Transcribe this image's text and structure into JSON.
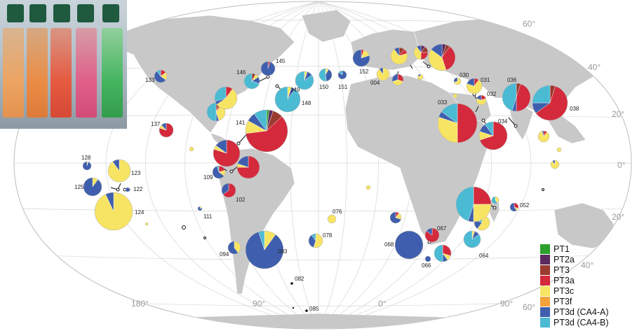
{
  "graticule_labels": {
    "lat_60_n": "60°",
    "lat_40_n": "40°",
    "lat_20_n": "20°",
    "lat_0": "0°",
    "lat_20_s": "20°",
    "lat_40_s": "40°",
    "lat_60_s": "60°",
    "lon_180": "180°",
    "lon_90w": "90°",
    "lon_0": "0°",
    "lon_90e": "90°"
  },
  "legend": [
    {
      "label": "PT1",
      "color": "#2ca02c"
    },
    {
      "label": "PT2a",
      "color": "#5b2a5e"
    },
    {
      "label": "PT3",
      "color": "#9b3a2e"
    },
    {
      "label": "PT3a",
      "color": "#d42a3c"
    },
    {
      "label": "PT3c",
      "color": "#f7e463"
    },
    {
      "label": "PT3f",
      "color": "#f2a23a"
    },
    {
      "label": "PT3d (CA4-A)",
      "color": "#3f5fae"
    },
    {
      "label": "PT3d (CA4-B)",
      "color": "#4bbad3"
    }
  ],
  "stations": [
    {
      "id": "133",
      "shares": [
        0,
        0,
        0,
        0.15,
        0.2,
        0,
        0.55,
        0.1
      ]
    },
    {
      "id": "146",
      "shares": [
        0,
        0,
        0.08,
        0,
        0.08,
        0,
        0.14,
        0.7
      ]
    },
    {
      "id": "145",
      "shares": [
        0,
        0,
        0,
        0.05,
        0,
        0,
        0.95,
        0
      ]
    },
    {
      "id": "149",
      "shares": [
        0,
        0,
        0,
        0,
        0.05,
        0,
        0.1,
        0.85
      ]
    },
    {
      "id": "150",
      "shares": [
        0,
        0,
        0,
        0,
        0.08,
        0,
        0.4,
        0.52
      ]
    },
    {
      "id": "151",
      "shares": [
        0,
        0,
        0,
        0,
        0,
        0,
        0.85,
        0.15
      ]
    },
    {
      "id": "152",
      "shares": [
        0,
        0,
        0,
        0.05,
        0.15,
        0,
        0.8,
        0
      ]
    },
    {
      "id": "148",
      "shares": [
        0,
        0,
        0,
        0,
        0.05,
        0,
        0.05,
        0.9
      ]
    },
    {
      "id": "141",
      "shares": [
        0.02,
        0.03,
        0.08,
        0.6,
        0.1,
        0,
        0.07,
        0.1
      ]
    },
    {
      "id": "137",
      "shares": [
        0,
        0,
        0,
        0.8,
        0.08,
        0,
        0.12,
        0
      ]
    },
    {
      "id": "128",
      "shares": [
        0,
        0,
        0,
        0,
        0.05,
        0,
        0.95,
        0
      ]
    },
    {
      "id": "123",
      "shares": [
        0,
        0,
        0,
        0,
        0.9,
        0,
        0.1,
        0
      ]
    },
    {
      "id": "125",
      "shares": [
        0,
        0,
        0,
        0,
        0.1,
        0,
        0.9,
        0
      ]
    },
    {
      "id": "122",
      "shares": [
        0,
        0,
        0,
        0,
        0,
        0,
        1,
        0
      ]
    },
    {
      "id": "124",
      "shares": [
        0,
        0,
        0,
        0,
        0.93,
        0,
        0.07,
        0
      ]
    },
    {
      "id": "109",
      "shares": [
        0,
        0,
        0,
        0.2,
        0.15,
        0,
        0.6,
        0.05
      ]
    },
    {
      "id": "102",
      "shares": [
        0,
        0,
        0,
        0.65,
        0,
        0,
        0.35,
        0
      ]
    },
    {
      "id": "111",
      "shares": [
        0,
        0,
        0,
        0,
        0.2,
        0,
        0.8,
        0
      ]
    },
    {
      "id": "093",
      "shares": [
        0,
        0,
        0,
        0,
        0.1,
        0,
        0.85,
        0.05
      ]
    },
    {
      "id": "094",
      "shares": [
        0,
        0,
        0,
        0,
        0.4,
        0,
        0.6,
        0
      ]
    },
    {
      "id": "078",
      "shares": [
        0,
        0,
        0,
        0,
        0.55,
        0,
        0.35,
        0.1
      ]
    },
    {
      "id": "076",
      "shares": [
        0,
        0,
        0,
        0,
        1,
        0,
        0,
        0
      ]
    },
    {
      "id": "082",
      "shares": []
    },
    {
      "id": "085",
      "shares": []
    },
    {
      "id": "004",
      "shares": [
        0,
        0,
        0,
        0,
        0.9,
        0,
        0.1,
        0
      ]
    },
    {
      "id": "068",
      "shares": [
        0,
        0,
        0,
        0,
        0,
        0,
        1,
        0
      ]
    },
    {
      "id": "067",
      "shares": [
        0,
        0,
        0,
        0.85,
        0,
        0,
        0.15,
        0
      ]
    },
    {
      "id": "066",
      "shares": [
        0,
        0,
        0,
        0,
        0,
        0,
        1,
        0
      ]
    },
    {
      "id": "064",
      "shares": [
        0,
        0,
        0,
        0,
        0.05,
        0,
        0.1,
        0.85
      ]
    },
    {
      "id": "052",
      "shares": [
        0,
        0,
        0,
        0.3,
        0.1,
        0,
        0.6,
        0
      ]
    },
    {
      "id": "034",
      "shares": [
        0,
        0,
        0,
        0.7,
        0.1,
        0,
        0.1,
        0.1
      ]
    },
    {
      "id": "033",
      "shares": [
        0,
        0,
        0,
        0.5,
        0.3,
        0,
        0.05,
        0.15
      ]
    },
    {
      "id": "036",
      "shares": [
        0,
        0,
        0.05,
        0.45,
        0,
        0,
        0.05,
        0.45
      ]
    },
    {
      "id": "038",
      "shares": [
        0,
        0,
        0.05,
        0.6,
        0,
        0,
        0.1,
        0.25
      ]
    },
    {
      "id": "030",
      "shares": [
        0,
        0,
        0,
        0,
        0.7,
        0,
        0.3,
        0
      ]
    },
    {
      "id": "031",
      "shares": [
        0,
        0,
        0,
        0.1,
        0.7,
        0,
        0.2,
        0
      ]
    },
    {
      "id": "032",
      "shares": [
        0,
        0,
        0,
        0.2,
        0.6,
        0,
        0.2,
        0
      ]
    }
  ]
}
